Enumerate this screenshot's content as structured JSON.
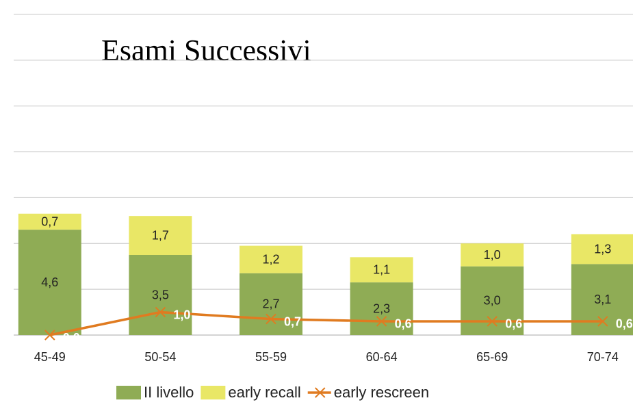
{
  "chart_data": {
    "type": "stacked_bar_line",
    "title": "Esami Successivi",
    "categories": [
      "45-49",
      "50-54",
      "55-59",
      "60-64",
      "65-69",
      "70-74"
    ],
    "series": [
      {
        "name": "II livello",
        "color": "#8fac55",
        "type": "bar",
        "values": [
          4.6,
          3.5,
          2.7,
          2.3,
          3.0,
          3.1
        ],
        "value_labels": [
          "4,6",
          "3,5",
          "2,7",
          "2,3",
          "3,0",
          "3,1"
        ]
      },
      {
        "name": "early recall",
        "color": "#e9e766",
        "type": "bar",
        "values": [
          0.7,
          1.7,
          1.2,
          1.1,
          1.0,
          1.3
        ],
        "value_labels": [
          "0,7",
          "1,7",
          "1,2",
          "1,1",
          "1,0",
          "1,3"
        ]
      },
      {
        "name": "early rescreen",
        "color": "#e07b20",
        "type": "line",
        "values": [
          0.0,
          1.0,
          0.7,
          0.6,
          0.6,
          0.6
        ],
        "value_labels": [
          "0,0",
          "1,0",
          "0,7",
          "0,6",
          "0,6",
          "0,6"
        ]
      }
    ],
    "ylim": [
      0,
      14
    ],
    "yticks": [
      0,
      2,
      4,
      6,
      8,
      10,
      12,
      14
    ],
    "grid": true,
    "legend": "bottom"
  }
}
